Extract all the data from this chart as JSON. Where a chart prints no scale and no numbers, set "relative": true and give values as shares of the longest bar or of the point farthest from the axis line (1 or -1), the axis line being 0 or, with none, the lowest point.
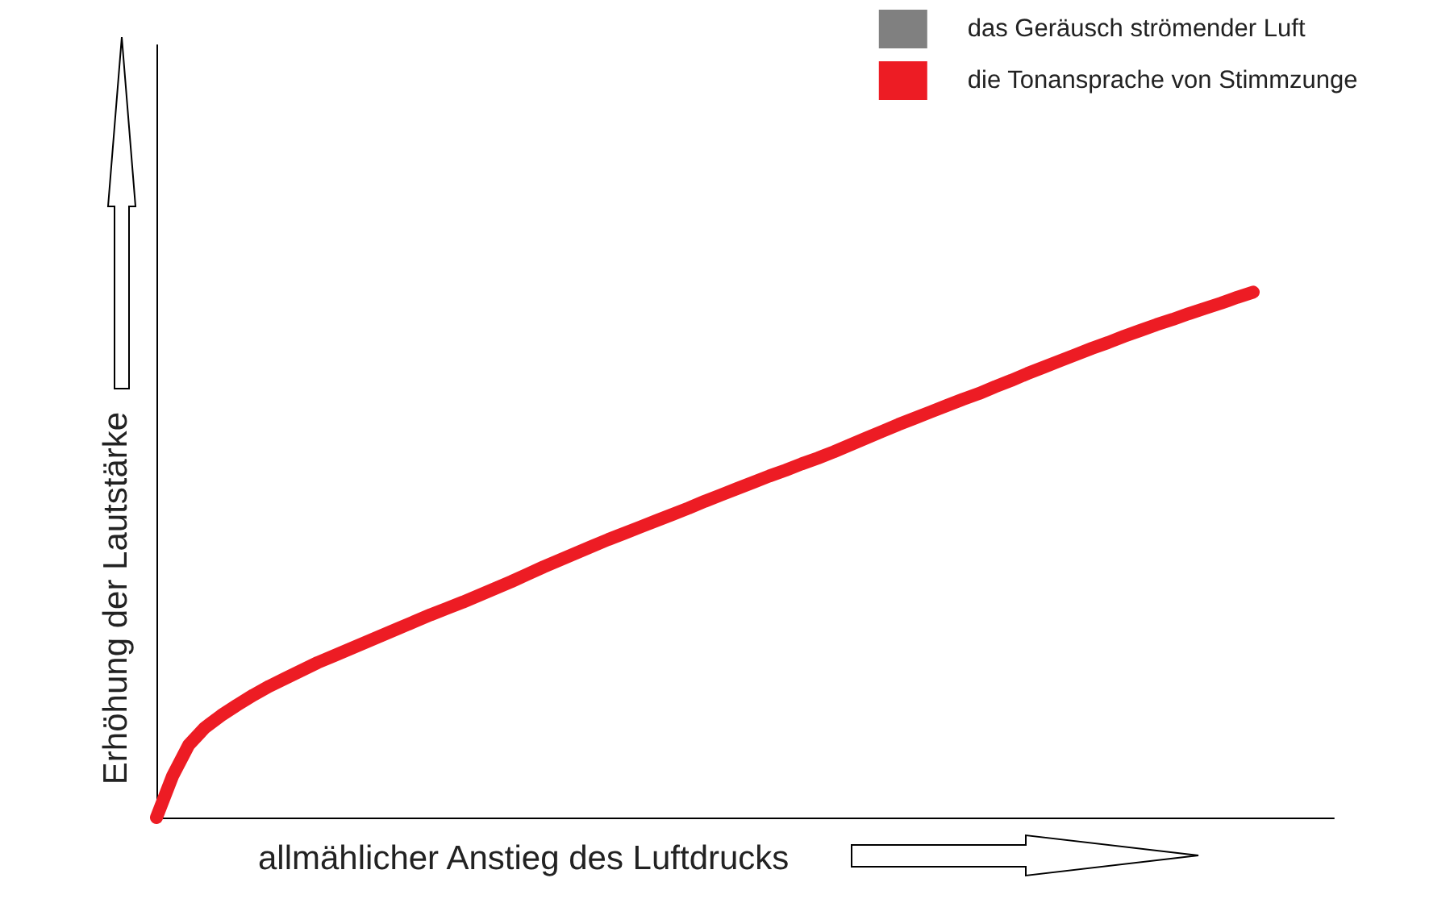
{
  "chart_data": {
    "type": "line",
    "xlabel": "allmählicher Anstieg des Luftdrucks",
    "ylabel": "Erhöhung der Lautstärke",
    "categories": [
      null,
      null,
      null,
      null,
      null,
      null,
      null,
      null,
      null,
      null,
      null,
      null,
      null,
      null,
      null,
      null,
      null,
      null,
      null,
      null,
      null,
      null,
      null,
      null,
      null,
      null,
      null,
      null,
      null,
      null,
      null,
      null,
      null,
      null,
      null,
      null,
      null,
      null,
      null,
      null,
      null,
      null,
      null,
      null,
      null,
      null,
      null,
      null,
      null,
      null,
      null,
      null,
      null,
      null,
      null,
      null,
      null,
      null,
      null,
      null,
      null,
      null,
      null,
      null,
      null,
      null,
      null,
      null,
      null,
      null,
      null,
      null,
      null,
      null
    ],
    "relative": true,
    "series": [
      {
        "name": "das Geräusch strömender Luft",
        "color": "#808080",
        "values": [
          null,
          null,
          null,
          null,
          null,
          null,
          null,
          null,
          null,
          null,
          null,
          null,
          null,
          null,
          null,
          null,
          null,
          null,
          null,
          null,
          null,
          null,
          null,
          null,
          null,
          null,
          null,
          null,
          null,
          null,
          null,
          null,
          null,
          null,
          null,
          null,
          null,
          null,
          null,
          null,
          null,
          null,
          null,
          null,
          null,
          null,
          null,
          null,
          null,
          null,
          null,
          null,
          null,
          null,
          null,
          null,
          null,
          null,
          null,
          null,
          null,
          null,
          null,
          null,
          null,
          null,
          null,
          null,
          null,
          null,
          null,
          null,
          null,
          null
        ]
      },
      {
        "name": "die Tonansprache von Stimmzunge",
        "color": "#ed1c24",
        "values": [
          0,
          0.079,
          0.138,
          0.171,
          0.194,
          0.214,
          0.233,
          0.25,
          0.265,
          0.28,
          0.295,
          0.308,
          0.321,
          0.334,
          0.347,
          0.36,
          0.373,
          0.386,
          0.398,
          0.41,
          0.423,
          0.436,
          0.449,
          0.463,
          0.477,
          0.49,
          0.503,
          0.516,
          0.529,
          0.541,
          0.553,
          0.565,
          0.577,
          0.589,
          0.602,
          0.614,
          0.626,
          0.638,
          0.65,
          0.661,
          0.673,
          0.684,
          0.696,
          0.709,
          0.722,
          0.735,
          0.748,
          0.76,
          0.772,
          0.784,
          0.796,
          0.807,
          0.82,
          0.832,
          0.845,
          0.857,
          0.869,
          0.881,
          0.893,
          0.904,
          0.916,
          0.927,
          0.938,
          0.948,
          0.959,
          0.969,
          0.979,
          0.99,
          1,
          null,
          null,
          null,
          null,
          null
        ]
      }
    ],
    "legend": "top right",
    "grid": false,
    "marker": "none",
    "line_style": "solid"
  }
}
